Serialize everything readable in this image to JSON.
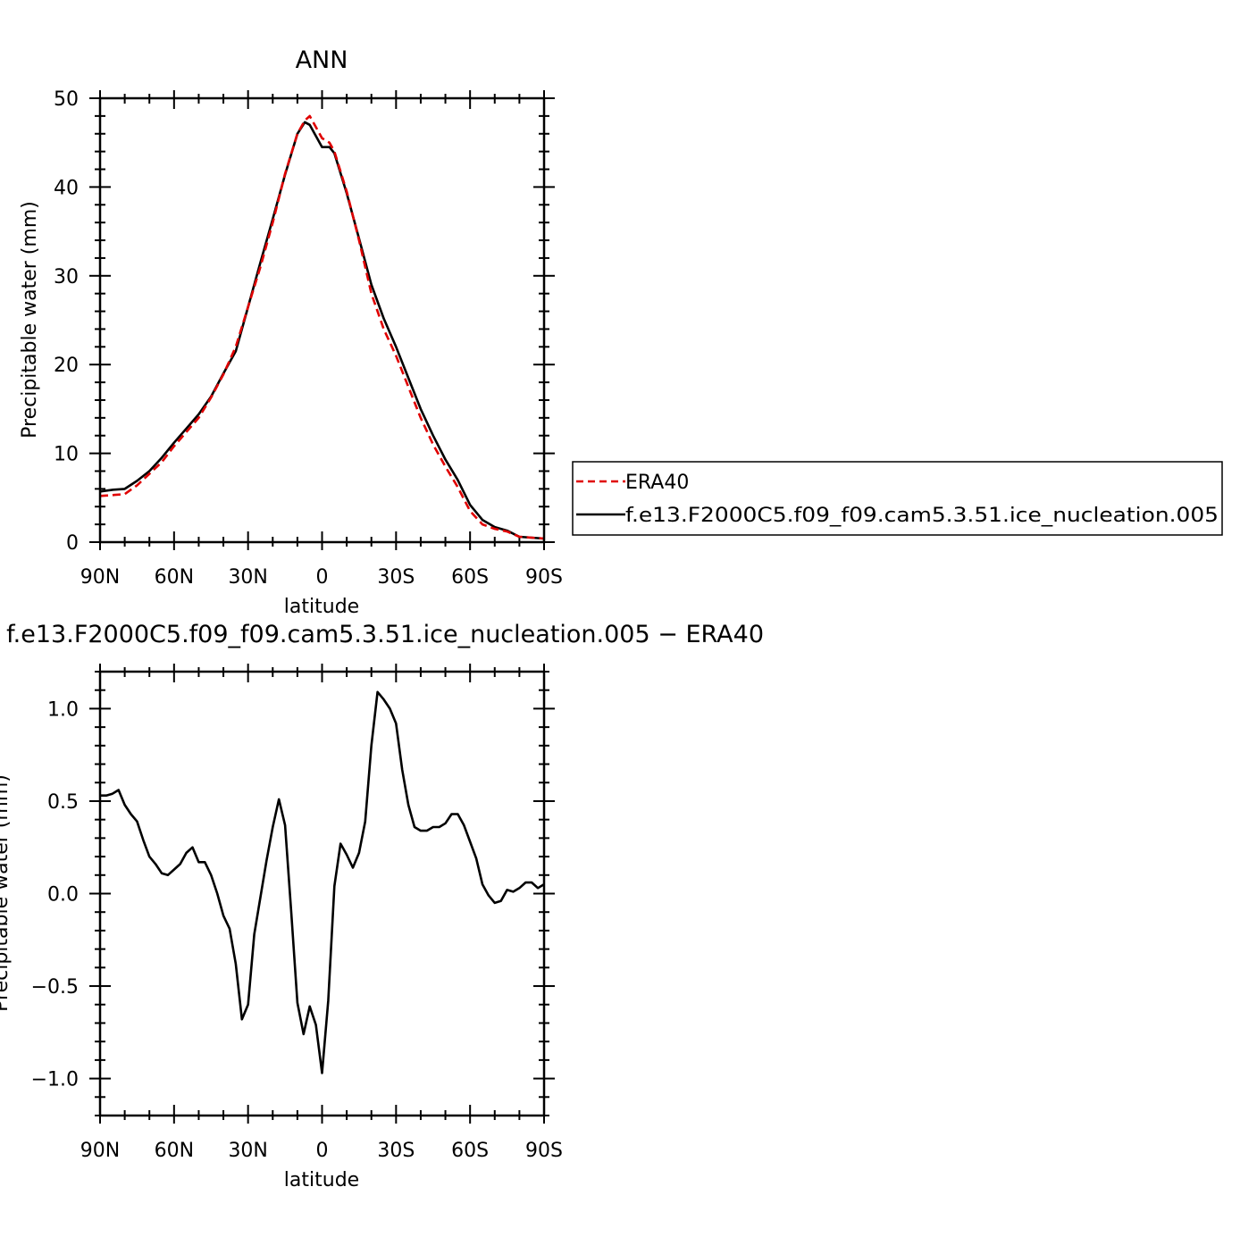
{
  "chart_data": [
    {
      "type": "line",
      "title": "ANN",
      "xlabel": "latitude",
      "ylabel": "Precipitable water (mm)",
      "xlim": [
        -90,
        90
      ],
      "ylim": [
        0,
        50
      ],
      "xticks": [
        -90,
        -60,
        -30,
        0,
        30,
        60,
        90
      ],
      "xticklabels": [
        "90N",
        "60N",
        "30N",
        "0",
        "30S",
        "60S",
        "90S"
      ],
      "yticks": [
        0,
        10,
        20,
        30,
        40,
        50
      ],
      "yticklabels": [
        "0",
        "10",
        "20",
        "30",
        "40",
        "50"
      ],
      "legend": {
        "placement": "right-outside"
      },
      "series": [
        {
          "name": "ERA40",
          "color": "#e00000",
          "dash": "dashed",
          "x": [
            -90,
            -85,
            -80,
            -75,
            -70,
            -65,
            -60,
            -55,
            -50,
            -45,
            -40,
            -35,
            -30,
            -25,
            -20,
            -15,
            -10,
            -7,
            -5,
            -3,
            0,
            3,
            5,
            10,
            15,
            20,
            25,
            30,
            35,
            40,
            45,
            50,
            55,
            60,
            65,
            70,
            75,
            80,
            85,
            90
          ],
          "y": [
            5.2,
            5.3,
            5.4,
            6.4,
            7.7,
            9.0,
            10.8,
            12.4,
            14.0,
            16.3,
            18.9,
            22.0,
            26.5,
            31.0,
            36.0,
            41.5,
            46.0,
            47.5,
            48.0,
            47.0,
            45.5,
            45.0,
            44.0,
            39.5,
            34.0,
            28.0,
            24.0,
            21.0,
            17.5,
            14.0,
            11.0,
            8.5,
            6.2,
            3.5,
            2.0,
            1.5,
            1.2,
            0.6,
            0.5,
            0.4
          ]
        },
        {
          "name": "f.e13.F2000C5.f09_f09.cam5.3.51.ice_nucleation.005",
          "color": "#000000",
          "dash": "solid",
          "x": [
            -90,
            -85,
            -80,
            -75,
            -70,
            -65,
            -60,
            -55,
            -50,
            -45,
            -40,
            -35,
            -30,
            -25,
            -20,
            -15,
            -10,
            -7,
            -5,
            -3,
            0,
            3,
            5,
            10,
            15,
            20,
            25,
            30,
            35,
            40,
            45,
            50,
            55,
            60,
            65,
            70,
            75,
            80,
            85,
            90
          ],
          "y": [
            5.7,
            5.9,
            6.0,
            6.9,
            8.0,
            9.5,
            11.2,
            12.8,
            14.4,
            16.4,
            19.0,
            21.5,
            26.5,
            31.5,
            36.4,
            41.4,
            46.0,
            47.3,
            47.0,
            46.0,
            44.5,
            44.5,
            43.8,
            39.3,
            34.2,
            29.0,
            25.2,
            22.0,
            18.5,
            15.0,
            12.0,
            9.3,
            7.0,
            4.2,
            2.5,
            1.7,
            1.3,
            0.6,
            0.5,
            0.4
          ]
        }
      ]
    },
    {
      "type": "line",
      "title": "f.e13.F2000C5.f09_f09.cam5.3.51.ice_nucleation.005 − ERA40",
      "xlabel": "latitude",
      "ylabel": "Precipitable water (mm)",
      "xlim": [
        -90,
        90
      ],
      "ylim": [
        -1.2,
        1.2
      ],
      "xticks": [
        -90,
        -60,
        -30,
        0,
        30,
        60,
        90
      ],
      "xticklabels": [
        "90N",
        "60N",
        "30N",
        "0",
        "30S",
        "60S",
        "90S"
      ],
      "yticks": [
        -1.0,
        -0.5,
        0.0,
        0.5,
        1.0
      ],
      "yticklabels": [
        "−1.0",
        "−0.5",
        "0.0",
        "0.5",
        "1.0"
      ],
      "series": [
        {
          "color": "#000000",
          "dash": "solid",
          "x": [
            -90,
            -87.5,
            -85,
            -82.5,
            -80,
            -77.5,
            -75,
            -72.5,
            -70,
            -67.5,
            -65,
            -62.5,
            -60,
            -57.5,
            -55,
            -52.5,
            -50,
            -47.5,
            -45,
            -42.5,
            -40,
            -37.5,
            -35,
            -32.5,
            -30,
            -27.5,
            -25,
            -22.5,
            -20,
            -17.5,
            -15,
            -12.5,
            -10,
            -7.5,
            -5,
            -2.5,
            0,
            2.5,
            5,
            7.5,
            10,
            12.5,
            15,
            17.5,
            20,
            22.5,
            25,
            27.5,
            30,
            32.5,
            35,
            37.5,
            40,
            42.5,
            45,
            47.5,
            50,
            52.5,
            55,
            57.5,
            60,
            62.5,
            65,
            67.5,
            70,
            72.5,
            75,
            77.5,
            80,
            82.5,
            85,
            87.5,
            90
          ],
          "y": [
            0.53,
            0.53,
            0.54,
            0.56,
            0.48,
            0.43,
            0.39,
            0.29,
            0.2,
            0.16,
            0.11,
            0.1,
            0.13,
            0.16,
            0.22,
            0.25,
            0.17,
            0.17,
            0.1,
            0.0,
            -0.12,
            -0.19,
            -0.38,
            -0.68,
            -0.6,
            -0.22,
            -0.02,
            0.18,
            0.36,
            0.51,
            0.37,
            -0.1,
            -0.59,
            -0.76,
            -0.61,
            -0.71,
            -0.97,
            -0.58,
            0.04,
            0.27,
            0.21,
            0.14,
            0.22,
            0.39,
            0.8,
            1.09,
            1.05,
            1.0,
            0.92,
            0.67,
            0.48,
            0.36,
            0.34,
            0.34,
            0.36,
            0.36,
            0.38,
            0.43,
            0.43,
            0.37,
            0.28,
            0.19,
            0.05,
            -0.01,
            -0.05,
            -0.04,
            0.02,
            0.01,
            0.03,
            0.06,
            0.06,
            0.03,
            0.05
          ]
        }
      ]
    }
  ]
}
